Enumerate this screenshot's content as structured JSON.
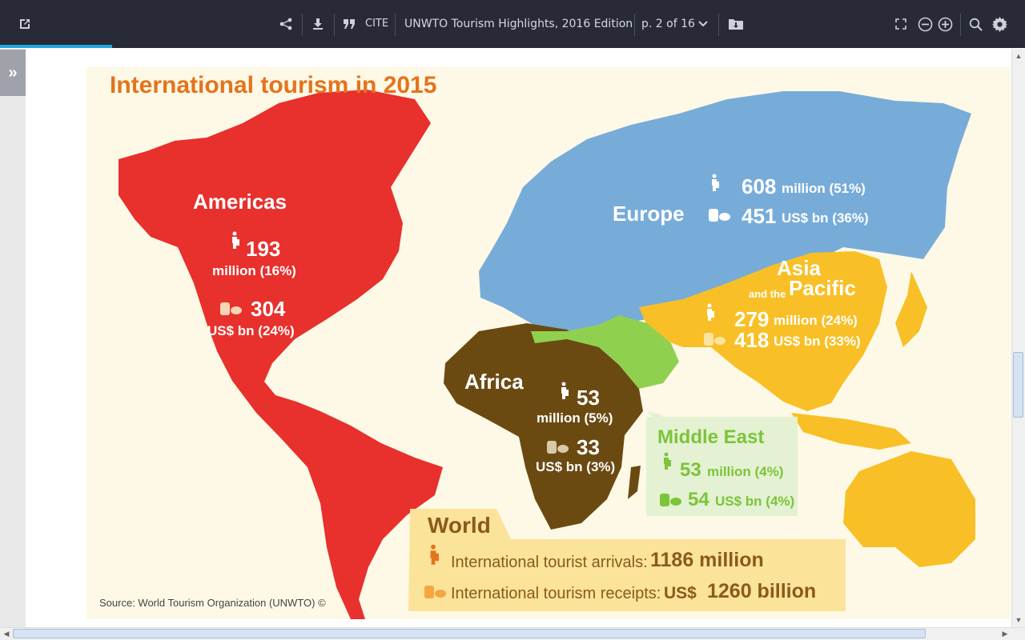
{
  "toolbar": {
    "cite_label": "CITE",
    "document_title": "UNWTO Tourism Highlights, 2016 Edition",
    "page_indicator": "p. 2 of 16"
  },
  "poster": {
    "title": "International tourism in 2015",
    "source": "Source: World Tourism Organization (UNWTO) ©",
    "americas": {
      "name": "Americas",
      "arrivals": "193",
      "arrivals_unit": "million (16%)",
      "receipts": "304",
      "receipts_unit": "US$ bn (24%)"
    },
    "europe": {
      "name": "Europe",
      "arrivals": "608",
      "arrivals_unit": "million (51%)",
      "receipts": "451",
      "receipts_unit": "US$ bn (36%)"
    },
    "asia": {
      "name_line1": "Asia",
      "name_line2a": "and the",
      "name_line2b": "Pacific",
      "arrivals": "279",
      "arrivals_unit": "million (24%)",
      "receipts": "418",
      "receipts_unit": "US$ bn (33%)"
    },
    "africa": {
      "name": "Africa",
      "arrivals": "53",
      "arrivals_unit": "million (5%)",
      "receipts": "33",
      "receipts_unit": "US$ bn (3%)"
    },
    "middle_east": {
      "name": "Middle East",
      "arrivals": "53",
      "arrivals_unit": "million (4%)",
      "receipts": "54",
      "receipts_unit": "US$ bn (4%)"
    },
    "world": {
      "name": "World",
      "arrivals_label": "International tourist arrivals:",
      "arrivals_value": "1186 million",
      "receipts_label": "International tourism receipts:",
      "receipts_prefix": "US$",
      "receipts_value": "1260 billion"
    }
  },
  "colors": {
    "americas": "#e8302c",
    "europe": "#77acd9",
    "asia": "#f8c026",
    "africa": "#6b4a12",
    "middle_east": "#8fd14f",
    "title": "#e5731c",
    "world_box": "#fbe39a"
  }
}
